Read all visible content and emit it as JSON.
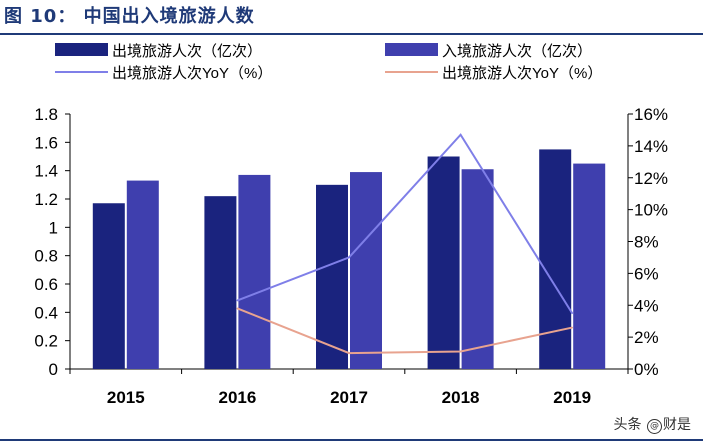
{
  "figure_title": "图 10：  中国出入境旅游人数",
  "watermark": {
    "prefix": "头条",
    "handle": "财是"
  },
  "chart_data": {
    "type": "bar",
    "categories": [
      "2015",
      "2016",
      "2017",
      "2018",
      "2019"
    ],
    "series": [
      {
        "name": "出境旅游人次（亿次）",
        "kind": "bar",
        "axis": "left",
        "color": "#1a237e",
        "values": [
          1.17,
          1.22,
          1.3,
          1.5,
          1.55
        ]
      },
      {
        "name": "入境旅游人次（亿次）",
        "kind": "bar",
        "axis": "left",
        "color": "#3f3fae",
        "values": [
          1.33,
          1.37,
          1.39,
          1.41,
          1.45
        ]
      },
      {
        "name": "出境旅游人次YoY（%）",
        "kind": "line",
        "axis": "right",
        "color": "#7f7fe8",
        "values": [
          null,
          4.3,
          7.0,
          14.7,
          3.5
        ]
      },
      {
        "name": "出境旅游人次YoY（%）",
        "kind": "line",
        "axis": "right",
        "color": "#e8a38f",
        "values": [
          null,
          3.8,
          1.0,
          1.1,
          2.6
        ]
      }
    ],
    "y_left": {
      "min": 0,
      "max": 1.8,
      "ticks": [
        "0",
        "0.2",
        "0.4",
        "0.6",
        "0.8",
        "1",
        "1.2",
        "1.4",
        "1.6",
        "1.8"
      ]
    },
    "y_right": {
      "min": 0,
      "max": 16,
      "ticks": [
        "0%",
        "2%",
        "4%",
        "6%",
        "8%",
        "10%",
        "12%",
        "14%",
        "16%"
      ]
    },
    "grid": false,
    "legend_position": "top"
  }
}
